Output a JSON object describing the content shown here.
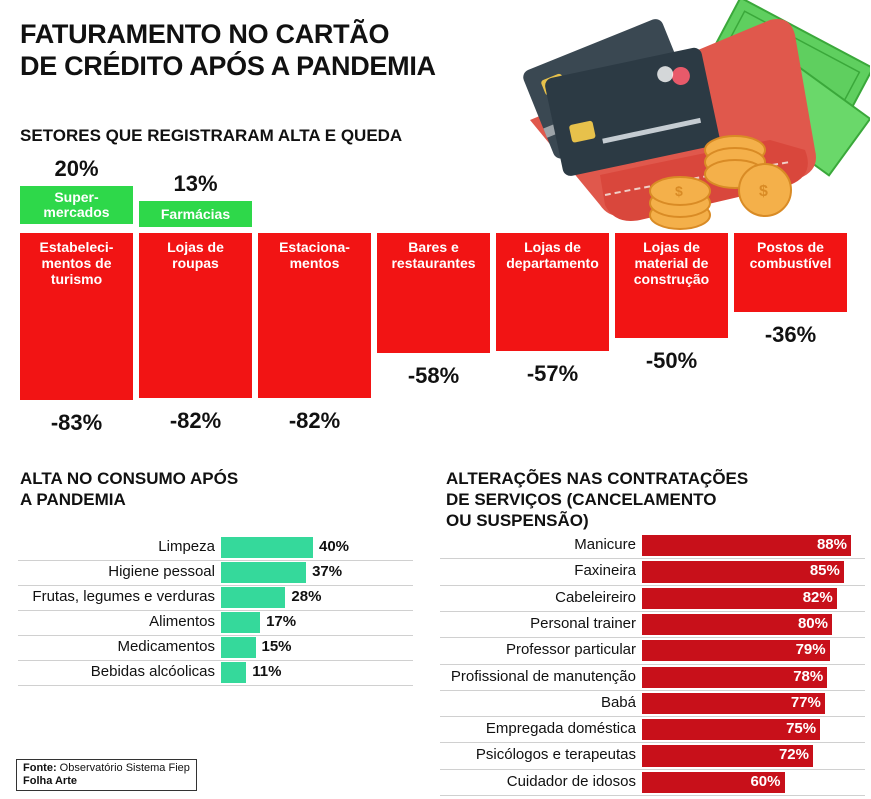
{
  "title": {
    "line1": "FATURAMENTO NO CARTÃO",
    "line2": "DE CRÉDITO APÓS A PANDEMIA"
  },
  "sectors_heading": "SETORES QUE REGISTRARAM ALTA E QUEDA",
  "consumption_heading": {
    "line1": "ALTA NO CONSUMO APÓS",
    "line2": "A PANDEMIA"
  },
  "services_heading": {
    "line1": "ALTERAÇÕES NAS CONTRATAÇÕES",
    "line2": "DE SERVIÇOS (CANCELAMENTO",
    "line3": "OU SUSPENSÃO)"
  },
  "source": {
    "label": "Fonte:",
    "text": " Observatório Sistema Fiep",
    "credit": "Folha Arte"
  },
  "colors": {
    "rise": "#2ed84a",
    "fall": "#f21414",
    "consumption_bar": "#35d99b",
    "services_bar": "#c8101a"
  },
  "illustration": "wallet-credit-cards-coins-icon",
  "chart_data": [
    {
      "type": "bar",
      "title": "SETORES QUE REGISTRARAM ALTA E QUEDA",
      "rises": [
        {
          "category": "Super-\nmercados",
          "value": 20,
          "label": "20%"
        },
        {
          "category": "Farmácias",
          "value": 13,
          "label": "13%"
        }
      ],
      "falls": [
        {
          "category": "Estabeleci-\nmentos de\nturismo",
          "value": -83,
          "label": "-83%"
        },
        {
          "category": "Lojas de\nroupas",
          "value": -82,
          "label": "-82%"
        },
        {
          "category": "Estaciona-\nmentos",
          "value": -82,
          "label": "-82%"
        },
        {
          "category": "Bares e\nrestaurantes",
          "value": -58,
          "label": "-58%"
        },
        {
          "category": "Lojas de\ndepartamento",
          "value": -57,
          "label": "-57%"
        },
        {
          "category": "Lojas de\nmaterial de\nconstrução",
          "value": -50,
          "label": "-50%"
        },
        {
          "category": "Postos de\ncombustível",
          "value": -36,
          "label": "-36%"
        }
      ]
    },
    {
      "type": "bar",
      "title": "ALTA NO CONSUMO APÓS A PANDEMIA",
      "categories": [
        "Limpeza",
        "Higiene pessoal",
        "Frutas, legumes e verduras",
        "Alimentos",
        "Medicamentos",
        "Bebidas alcóolicas"
      ],
      "values": [
        40,
        37,
        28,
        17,
        15,
        11
      ],
      "labels": [
        "40%",
        "37%",
        "28%",
        "17%",
        "15%",
        "11%"
      ]
    },
    {
      "type": "bar",
      "title": "ALTERAÇÕES NAS CONTRATAÇÕES DE SERVIÇOS (CANCELAMENTO OU SUSPENSÃO)",
      "categories": [
        "Manicure",
        "Faxineira",
        "Cabeleireiro",
        "Personal trainer",
        "Professor particular",
        "Profissional de manutenção",
        "Babá",
        "Empregada doméstica",
        "Psicólogos e terapeutas",
        "Cuidador de idosos"
      ],
      "values": [
        88,
        85,
        82,
        80,
        79,
        78,
        77,
        75,
        72,
        60
      ],
      "labels": [
        "88%",
        "85%",
        "82%",
        "80%",
        "79%",
        "78%",
        "77%",
        "75%",
        "72%",
        "60%"
      ]
    }
  ]
}
